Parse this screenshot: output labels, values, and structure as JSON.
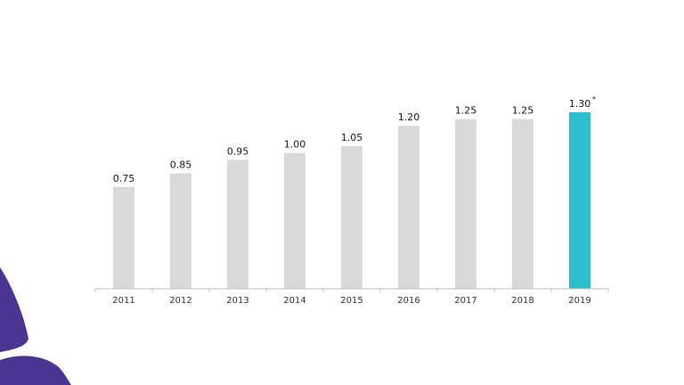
{
  "chart_data": {
    "type": "bar",
    "title": "",
    "xlabel": "",
    "ylabel": "",
    "categories": [
      "2011",
      "2012",
      "2013",
      "2014",
      "2015",
      "2016",
      "2017",
      "2018",
      "2019"
    ],
    "values": [
      0.75,
      0.85,
      0.95,
      1.0,
      1.05,
      1.2,
      1.25,
      1.25,
      1.3
    ],
    "value_labels": [
      "0.75",
      "0.85",
      "0.95",
      "1.00",
      "1.05",
      "1.20",
      "1.25",
      "1.25",
      "1.30"
    ],
    "ylim": [
      0,
      1.3
    ],
    "grid": false,
    "legend": "none",
    "highlight_index": 8,
    "highlight_marker": "*",
    "colors": {
      "bar": "#d9d9d9",
      "highlight": "#2bbfcf",
      "axis": "#bfbfbf",
      "decor": "#4b3592"
    }
  }
}
